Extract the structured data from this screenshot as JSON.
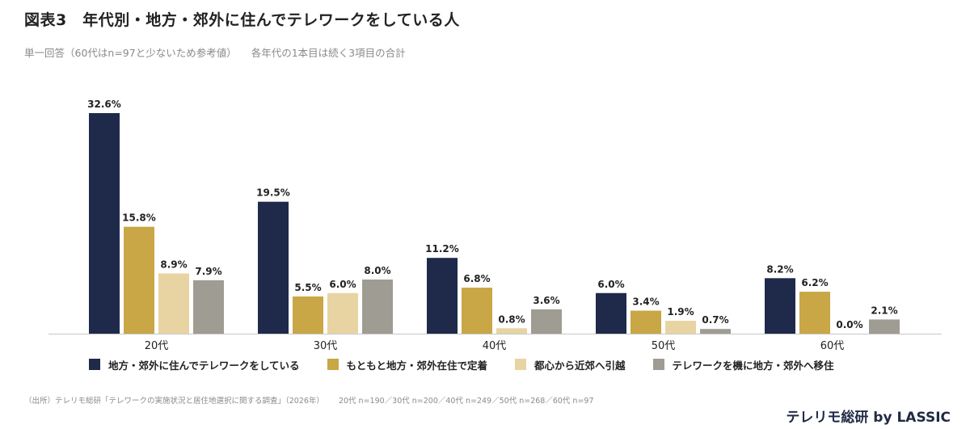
{
  "title": "図表3　年代別・地方・郊外に住んでテレワークをしている人",
  "subtitle": "単一回答（60代はn=97と少ないため参考値）",
  "subtitle_note": "各年代の1本目は続く3項目の合計",
  "footnote": "（出所）テレリモ総研「テレワークの実施状況と居住地選択に関する調査」（2026年）",
  "footnote_n": "20代 n=190／30代 n=200／40代 n=249／50代 n=268／60代 n=97",
  "brand": "テレリモ総研 by LASSIC",
  "colors": [
    "#1f2a4a",
    "#c9a646",
    "#e8d4a2",
    "#9f9d93"
  ],
  "chart_data": {
    "type": "bar",
    "categories": [
      "20代",
      "30代",
      "40代",
      "50代",
      "60代"
    ],
    "series": [
      {
        "name": "地方・郊外に住んでテレワークをしている",
        "values": [
          32.6,
          19.5,
          11.2,
          6.0,
          8.2
        ],
        "labels": [
          "32.6%",
          "19.5%",
          "11.2%",
          "6.0%",
          "8.2%"
        ]
      },
      {
        "name": "もともと地方・郊外在住で定着",
        "values": [
          15.8,
          5.5,
          6.8,
          3.4,
          6.2
        ],
        "labels": [
          "15.8%",
          "5.5%",
          "6.8%",
          "3.4%",
          "6.2%"
        ]
      },
      {
        "name": "都心から近郊へ引越",
        "values": [
          8.9,
          6.0,
          0.8,
          1.9,
          0.0
        ],
        "labels": [
          "8.9%",
          "6.0%",
          "0.8%",
          "1.9%",
          "0.0%"
        ]
      },
      {
        "name": "テレワークを機に地方・郊外へ移住",
        "values": [
          7.9,
          8.0,
          3.6,
          0.7,
          2.1
        ],
        "labels": [
          "7.9%",
          "8.0%",
          "3.6%",
          "0.7%",
          "2.1%"
        ]
      }
    ],
    "ylim": [
      0,
      32.6
    ],
    "legend_position": "bottom"
  }
}
